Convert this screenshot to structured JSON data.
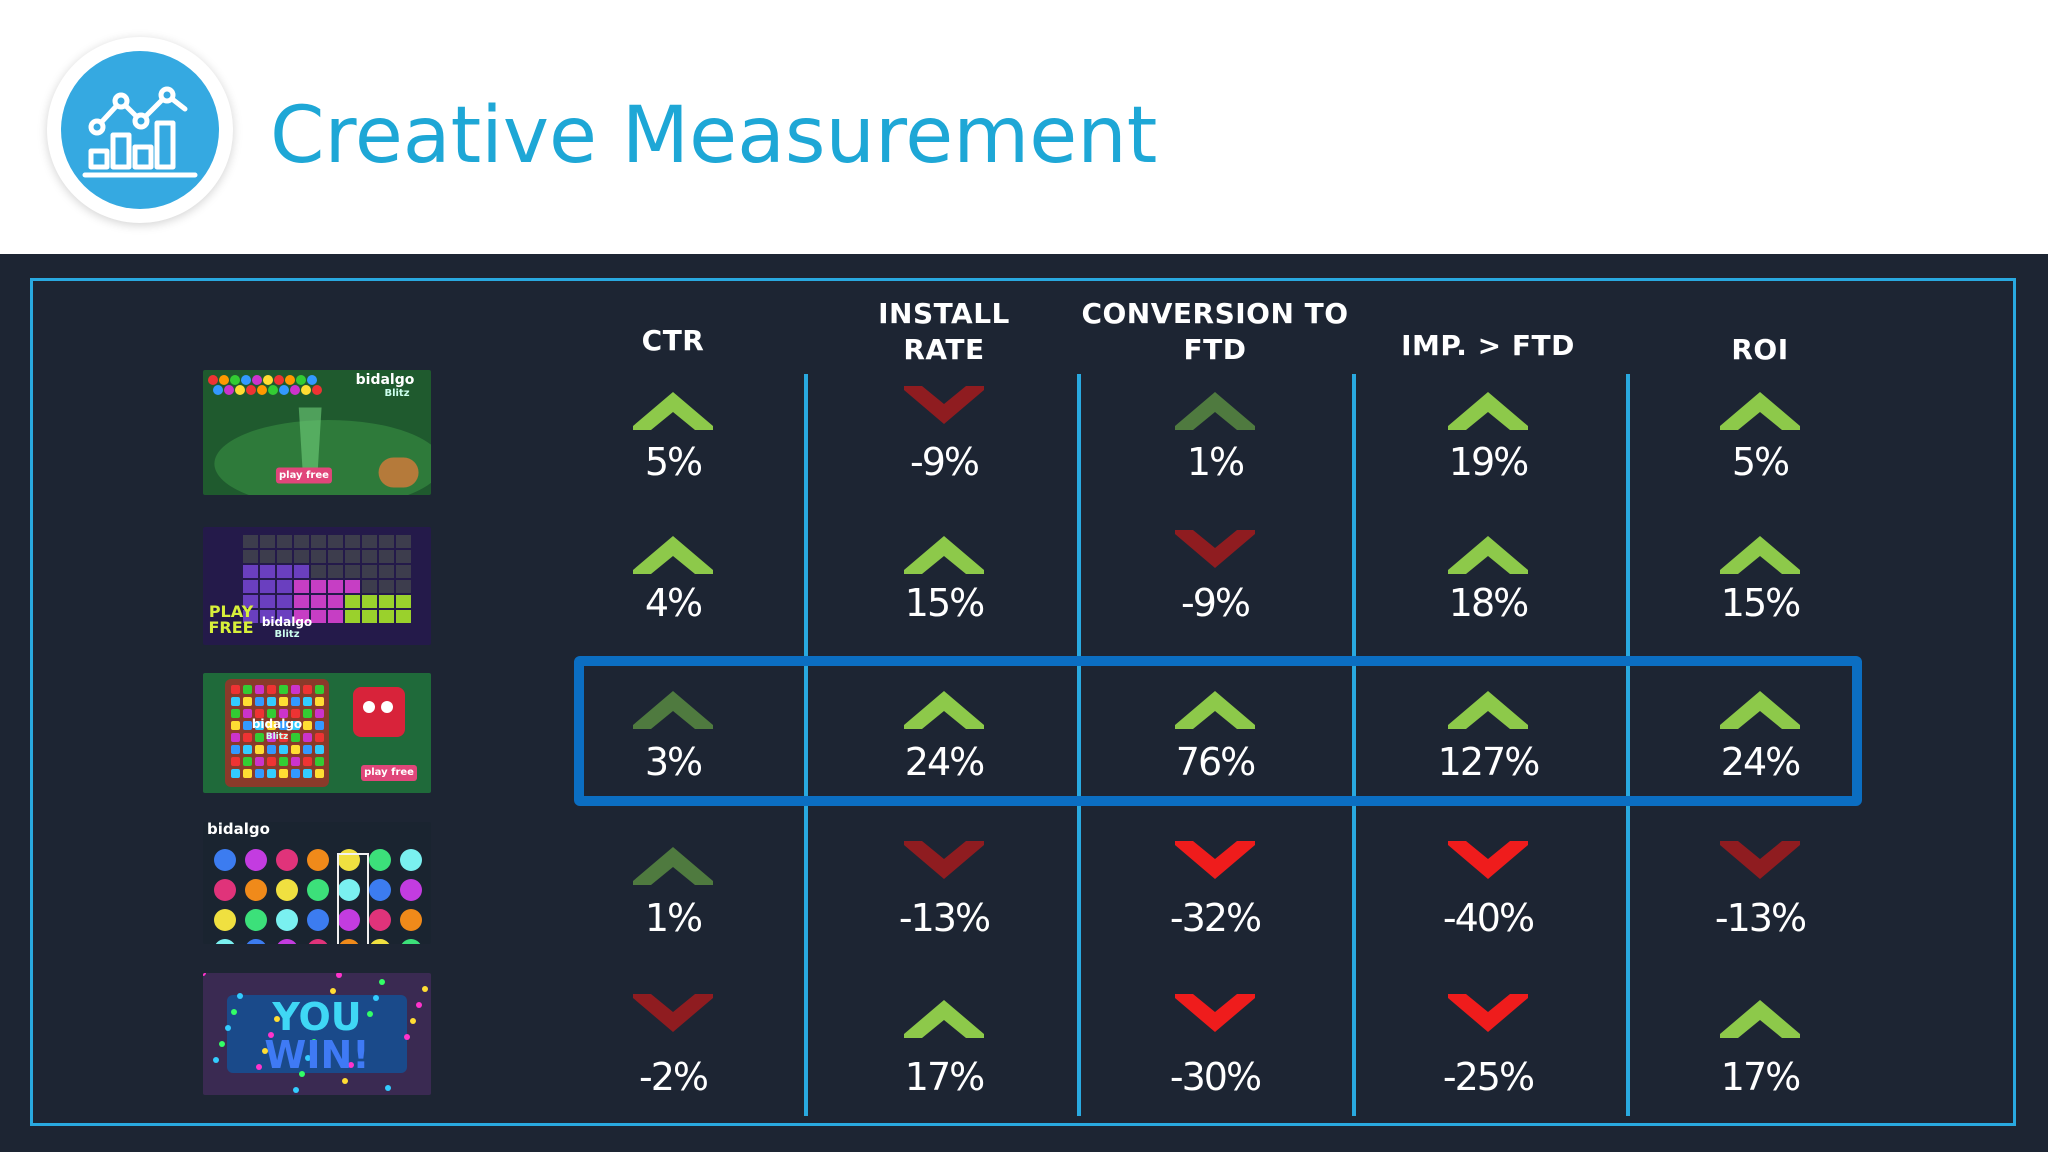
{
  "header": {
    "title": "Creative Measurement",
    "icon": "chart-analytics-icon"
  },
  "table": {
    "columns": [
      "CTR",
      "INSTALL RATE",
      "CONVERSION TO FTD",
      "IMP. > FTD",
      "ROI"
    ],
    "column_lines": [
      [
        "CTR"
      ],
      [
        "INSTALL",
        "RATE"
      ],
      [
        "CONVERSION TO",
        "FTD"
      ],
      [
        "IMP. > FTD"
      ],
      [
        "ROI"
      ]
    ],
    "highlighted_row": 3,
    "rows": [
      {
        "creative": "creative-1-bubble-shooter",
        "thumb_text": [
          "bidalgo",
          "Blitz",
          "play free"
        ],
        "cells": [
          {
            "value": "5%",
            "dir": "up",
            "strength": "strong"
          },
          {
            "value": "-9%",
            "dir": "down",
            "strength": "weak"
          },
          {
            "value": "1%",
            "dir": "up",
            "strength": "weak"
          },
          {
            "value": "19%",
            "dir": "up",
            "strength": "strong"
          },
          {
            "value": "5%",
            "dir": "up",
            "strength": "strong"
          }
        ]
      },
      {
        "creative": "creative-2-block-puzzle",
        "thumb_text": [
          "PLAY",
          "FREE",
          "bidalgo",
          "Blitz"
        ],
        "cells": [
          {
            "value": "4%",
            "dir": "up",
            "strength": "strong"
          },
          {
            "value": "15%",
            "dir": "up",
            "strength": "strong"
          },
          {
            "value": "-9%",
            "dir": "down",
            "strength": "weak"
          },
          {
            "value": "18%",
            "dir": "up",
            "strength": "strong"
          },
          {
            "value": "15%",
            "dir": "up",
            "strength": "strong"
          }
        ]
      },
      {
        "creative": "creative-3-gem-match",
        "thumb_text": [
          "bidalgo",
          "Blitz",
          "play free"
        ],
        "cells": [
          {
            "value": "3%",
            "dir": "up",
            "strength": "weak"
          },
          {
            "value": "24%",
            "dir": "up",
            "strength": "strong"
          },
          {
            "value": "76%",
            "dir": "up",
            "strength": "strong"
          },
          {
            "value": "127%",
            "dir": "up",
            "strength": "strong"
          },
          {
            "value": "24%",
            "dir": "up",
            "strength": "strong"
          }
        ]
      },
      {
        "creative": "creative-4-jewel-grid",
        "thumb_text": [
          "bidalgo"
        ],
        "cells": [
          {
            "value": "1%",
            "dir": "up",
            "strength": "weak"
          },
          {
            "value": "-13%",
            "dir": "down",
            "strength": "weak"
          },
          {
            "value": "-32%",
            "dir": "down",
            "strength": "strong"
          },
          {
            "value": "-40%",
            "dir": "down",
            "strength": "strong"
          },
          {
            "value": "-13%",
            "dir": "down",
            "strength": "weak"
          }
        ]
      },
      {
        "creative": "creative-5-you-win",
        "thumb_text": [
          "YOU",
          "WIN!"
        ],
        "cells": [
          {
            "value": "-2%",
            "dir": "down",
            "strength": "weak"
          },
          {
            "value": "17%",
            "dir": "up",
            "strength": "strong"
          },
          {
            "value": "-30%",
            "dir": "down",
            "strength": "strong"
          },
          {
            "value": "-25%",
            "dir": "down",
            "strength": "strong"
          },
          {
            "value": "17%",
            "dir": "up",
            "strength": "strong"
          }
        ]
      }
    ]
  },
  "colors": {
    "title": "#1ea7d6",
    "panel_bg": "#1d2533",
    "frame": "#29a9e0",
    "highlight": "#0b6ec2",
    "up_strong": "#8dc94a",
    "up_weak": "#4f7a3f",
    "down_strong": "#ef1c1c",
    "down_weak": "#8f1c20"
  }
}
